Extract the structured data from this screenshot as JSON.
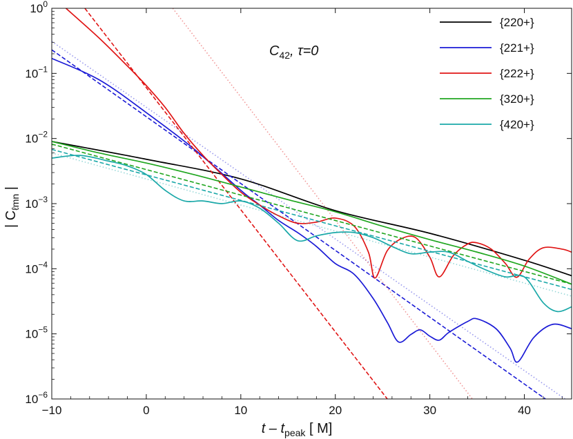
{
  "chart_data": {
    "type": "line",
    "y_scale": "log",
    "xlabel_main": "t – t",
    "xlabel_sub": "peak",
    "xlabel_units": " [ M]",
    "ylabel_main": "| C",
    "ylabel_sub": "ℓmn",
    "ylabel_end": " |",
    "annotation_main": "C",
    "annotation_sub": "42",
    "annotation_rest": ", τ=0",
    "xlim": [
      -10,
      45
    ],
    "ylim": [
      1e-06,
      1
    ],
    "x_ticks": [
      -10,
      0,
      10,
      20,
      30,
      40
    ],
    "y_ticks": [
      {
        "value": 1,
        "exp": "0"
      },
      {
        "value": 0.1,
        "exp": "-1"
      },
      {
        "value": 0.01,
        "exp": "-2"
      },
      {
        "value": 0.001,
        "exp": "-3"
      },
      {
        "value": 0.0001,
        "exp": "-4"
      },
      {
        "value": 1e-05,
        "exp": "-5"
      },
      {
        "value": 1e-06,
        "exp": "-6"
      }
    ],
    "y_tick_base": "10",
    "legend_position": "top-right",
    "series": [
      {
        "name": "{220+}",
        "color": "#000000",
        "solid": [
          [
            -10,
            0.009
          ],
          [
            0,
            0.0048
          ],
          [
            10,
            0.0024
          ],
          [
            20,
            0.00078
          ],
          [
            30,
            0.00035
          ],
          [
            40,
            0.000135
          ],
          [
            45,
            7.8e-05
          ]
        ],
        "dashed": [],
        "dotted": []
      },
      {
        "name": "{221+}",
        "color": "#1a1ad6",
        "solid": [
          [
            -10,
            0.17
          ],
          [
            -5,
            0.08
          ],
          [
            0,
            0.025
          ],
          [
            5,
            0.007
          ],
          [
            10,
            0.0016
          ],
          [
            12,
            0.00095
          ],
          [
            14,
            0.00055
          ],
          [
            16,
            0.00036
          ],
          [
            18,
            0.00022
          ],
          [
            20,
            0.00012
          ],
          [
            22,
            8.2e-05
          ],
          [
            24,
            3.5e-05
          ],
          [
            25.5,
            1.5e-05
          ],
          [
            26.7,
            7.5e-06
          ],
          [
            28,
            9.8e-06
          ],
          [
            29,
            1.15e-05
          ],
          [
            30,
            9.2e-06
          ],
          [
            31,
            8e-06
          ],
          [
            32,
            1.05e-05
          ],
          [
            34,
            1.55e-05
          ],
          [
            35,
            1.7e-05
          ],
          [
            37,
            1.2e-05
          ],
          [
            38.5,
            6e-06
          ],
          [
            39.3,
            3.7e-06
          ],
          [
            41,
            8.8e-06
          ],
          [
            43,
            1.4e-05
          ],
          [
            45,
            1.2e-05
          ]
        ],
        "dashed": [
          [
            -10,
            0.23
          ],
          [
            45,
            5.2e-07
          ]
        ],
        "dotted": [
          [
            -10,
            0.31
          ],
          [
            45,
            8.5e-07
          ]
        ]
      },
      {
        "name": "{222+}",
        "color": "#e01414",
        "solid": [
          [
            -8.5,
            1.0
          ],
          [
            -5,
            0.35
          ],
          [
            -2,
            0.13
          ],
          [
            0,
            0.065
          ],
          [
            2,
            0.03
          ],
          [
            4,
            0.012
          ],
          [
            6,
            0.0055
          ],
          [
            8,
            0.0028
          ],
          [
            10,
            0.0015
          ],
          [
            12,
            0.00095
          ],
          [
            14,
            0.00065
          ],
          [
            16,
            0.0005
          ],
          [
            18,
            0.00052
          ],
          [
            20,
            0.0006
          ],
          [
            22,
            0.00045
          ],
          [
            23.5,
            0.00018
          ],
          [
            24.2,
            7.2e-05
          ],
          [
            25.5,
            0.00019
          ],
          [
            27,
            0.00029
          ],
          [
            28.5,
            0.0003
          ],
          [
            30,
            0.00015
          ],
          [
            31,
            7.5e-05
          ],
          [
            32.5,
            0.00016
          ],
          [
            34,
            0.00024
          ],
          [
            35,
            0.00025
          ],
          [
            36.5,
            0.0002
          ],
          [
            38,
            0.00012
          ],
          [
            39.2,
            7.4e-05
          ],
          [
            40.5,
            0.00014
          ],
          [
            42,
            0.00021
          ],
          [
            44,
            0.0002
          ],
          [
            45,
            0.00018
          ]
        ],
        "dashed": [
          [
            -6.5,
            1.0
          ],
          [
            25.5,
            1e-06
          ]
        ],
        "dotted": [
          [
            2.8,
            1.0
          ],
          [
            34.5,
            1e-06
          ]
        ]
      },
      {
        "name": "{320+}",
        "color": "#1fa61f",
        "solid": [
          [
            -10,
            0.009
          ],
          [
            -5,
            0.006
          ],
          [
            0,
            0.0042
          ],
          [
            5,
            0.0028
          ],
          [
            10,
            0.0018
          ],
          [
            15,
            0.00115
          ],
          [
            20,
            0.00075
          ],
          [
            25,
            0.00045
          ],
          [
            30,
            0.00028
          ],
          [
            35,
            0.00018
          ],
          [
            40,
            0.00011
          ],
          [
            45,
            5.8e-05
          ]
        ],
        "dashed": [
          [
            -10,
            0.0082
          ],
          [
            45,
            5.8e-05
          ]
        ],
        "dotted": []
      },
      {
        "name": "{420+}",
        "color": "#1aa8a8",
        "solid": [
          [
            -10,
            0.005
          ],
          [
            -7,
            0.0055
          ],
          [
            -4,
            0.0045
          ],
          [
            -2,
            0.0038
          ],
          [
            0,
            0.0028
          ],
          [
            2,
            0.0016
          ],
          [
            4,
            0.0011
          ],
          [
            6,
            0.0011
          ],
          [
            8,
            0.001
          ],
          [
            10,
            0.0011
          ],
          [
            12,
            0.00085
          ],
          [
            14,
            0.0005
          ],
          [
            16,
            0.00027
          ],
          [
            18,
            0.00032
          ],
          [
            20,
            0.00036
          ],
          [
            22,
            0.00036
          ],
          [
            24,
            0.0003
          ],
          [
            26,
            0.00022
          ],
          [
            28,
            0.00017
          ],
          [
            30,
            0.00018
          ],
          [
            32,
            0.00018
          ],
          [
            34,
            0.00013
          ],
          [
            36,
            9.5e-05
          ],
          [
            38,
            7.5e-05
          ],
          [
            40,
            7.5e-05
          ],
          [
            42,
            3e-05
          ],
          [
            43.5,
            2.2e-05
          ],
          [
            45,
            2.6e-05
          ]
        ],
        "dashed": [
          [
            -10,
            0.0068
          ],
          [
            45,
            4.8e-05
          ]
        ],
        "dotted": [
          [
            -10,
            0.006
          ],
          [
            45,
            3.8e-05
          ]
        ]
      }
    ]
  }
}
